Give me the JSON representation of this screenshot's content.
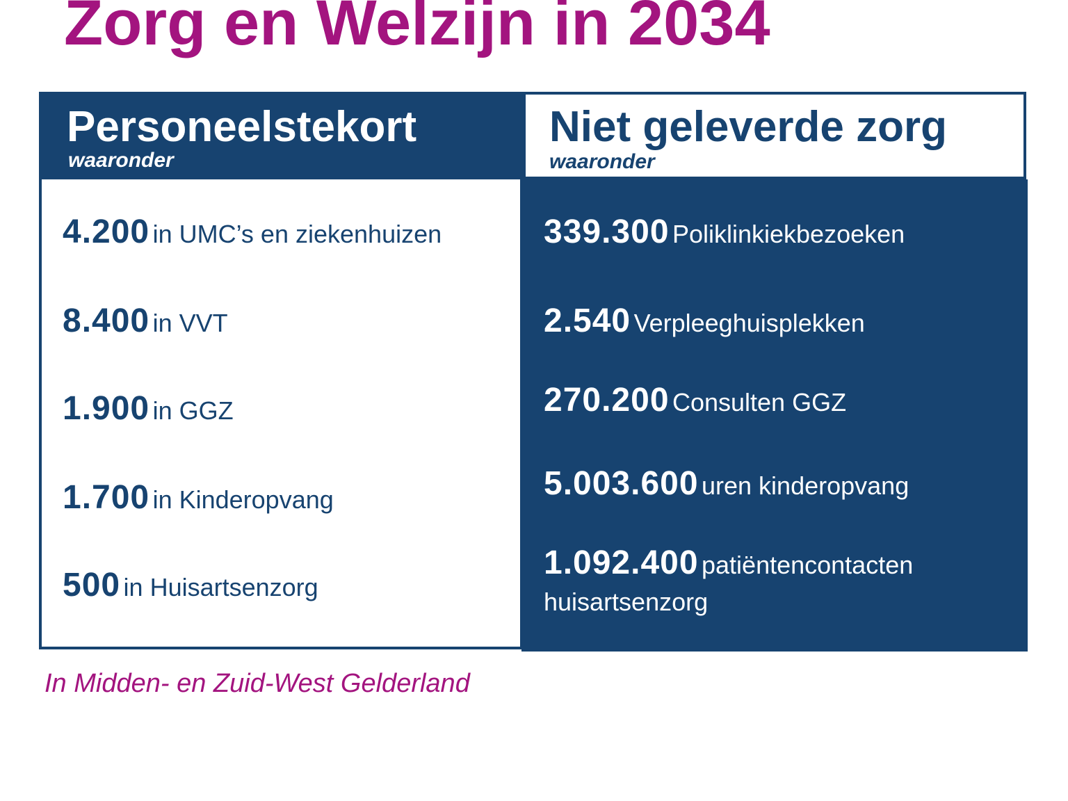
{
  "title": "Zorg en Welzijn in 2034",
  "left_panel": {
    "heading": "Personeelstekort",
    "subheading": "waaronder",
    "items": [
      {
        "number": "4.200",
        "label": "in UMC’s en ziekenhuizen"
      },
      {
        "number": "8.400",
        "label": "in VVT"
      },
      {
        "number": "1.900",
        "label": "in GGZ"
      },
      {
        "number": "1.700",
        "label": "in Kinderopvang"
      },
      {
        "number": "500",
        "label": "in Huisartsenzorg"
      }
    ]
  },
  "right_panel": {
    "heading": "Niet geleverde zorg",
    "subheading": "waaronder",
    "items": [
      {
        "number": "339.300",
        "label": "Poliklinkiekbezoeken"
      },
      {
        "number": "2.540",
        "label": "Verpleeghuisplekken"
      },
      {
        "number": "270.200",
        "label": "Consulten GGZ"
      },
      {
        "number": "5.003.600",
        "label": "uren kinderopvang"
      },
      {
        "number": "1.092.400",
        "label": "patiëntencontacten",
        "label_line2": "huisartsenzorg"
      }
    ]
  },
  "footnote": "In Midden- en Zuid-West Gelderland",
  "colors": {
    "title": "#a3147f",
    "navy": "#174370",
    "white": "#ffffff"
  }
}
